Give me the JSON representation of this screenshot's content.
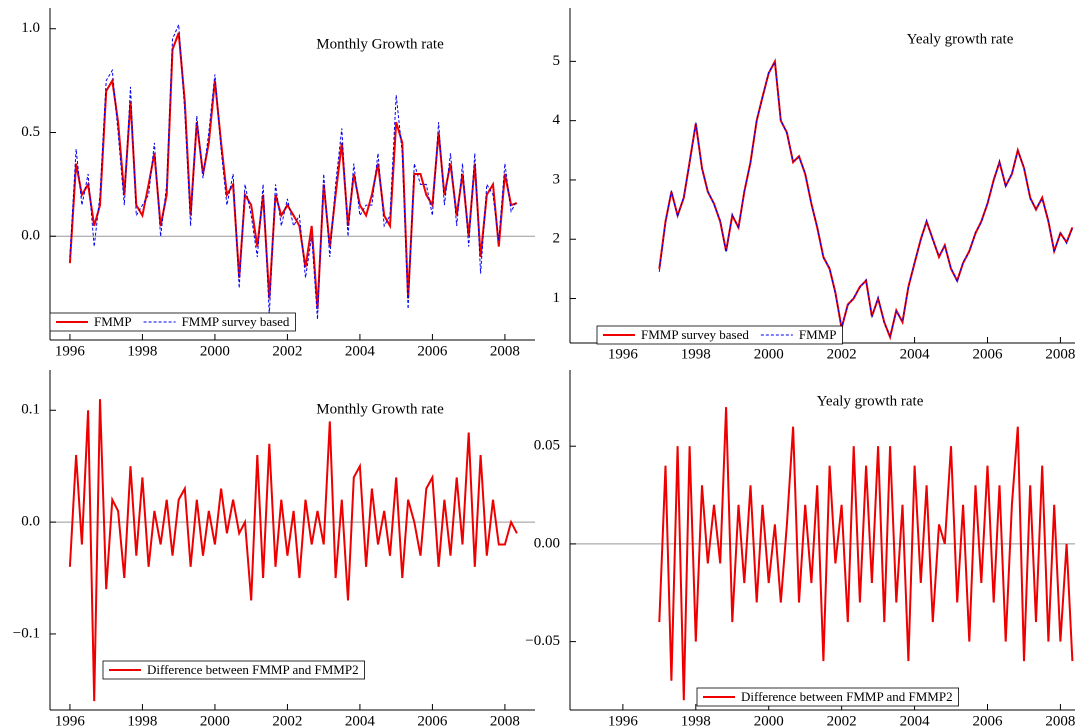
{
  "chart_data": [
    {
      "type": "line",
      "title": "Monthly Growth rate",
      "legend": "lower left",
      "xlim": [
        1995.45,
        2008.83
      ],
      "ylim": [
        -0.5,
        1.1
      ],
      "xticks": [
        1996,
        1998,
        2000,
        2002,
        2004,
        2006,
        2008
      ],
      "yticks": [
        {
          "value": 0,
          "label": "0.0"
        },
        0.5,
        {
          "value": 1,
          "label": "1.0"
        }
      ],
      "x": [
        1996,
        1996.17,
        1996.33,
        1996.5,
        1996.67,
        1996.83,
        1997,
        1997.17,
        1997.33,
        1997.5,
        1997.67,
        1997.83,
        1998,
        1998.17,
        1998.33,
        1998.5,
        1998.67,
        1998.83,
        1999,
        1999.17,
        1999.33,
        1999.5,
        1999.67,
        1999.83,
        2000,
        2000.17,
        2000.33,
        2000.5,
        2000.67,
        2000.83,
        2001,
        2001.17,
        2001.33,
        2001.5,
        2001.67,
        2001.83,
        2002,
        2002.17,
        2002.33,
        2002.5,
        2002.67,
        2002.83,
        2003,
        2003.17,
        2003.33,
        2003.5,
        2003.67,
        2003.83,
        2004,
        2004.17,
        2004.33,
        2004.5,
        2004.67,
        2004.83,
        2005,
        2005.17,
        2005.33,
        2005.5,
        2005.67,
        2005.83,
        2006,
        2006.17,
        2006.33,
        2006.5,
        2006.67,
        2006.83,
        2007,
        2007.17,
        2007.33,
        2007.5,
        2007.67,
        2007.83,
        2008,
        2008.17,
        2008.33
      ],
      "series": [
        {
          "name": "FMMP",
          "color": "#ee0000",
          "linestyle": "solid",
          "values": [
            -0.13,
            0.35,
            0.2,
            0.25,
            0.05,
            0.15,
            0.7,
            0.75,
            0.55,
            0.2,
            0.65,
            0.15,
            0.1,
            0.25,
            0.4,
            0.05,
            0.2,
            0.9,
            0.98,
            0.65,
            0.1,
            0.55,
            0.3,
            0.45,
            0.75,
            0.45,
            0.2,
            0.25,
            -0.2,
            0.2,
            0.15,
            -0.05,
            0.2,
            -0.3,
            0.2,
            0.1,
            0.15,
            0.1,
            0.05,
            -0.15,
            0.05,
            -0.35,
            0.25,
            -0.05,
            0.2,
            0.45,
            0.05,
            0.3,
            0.15,
            0.1,
            0.2,
            0.35,
            0.1,
            0.05,
            0.55,
            0.45,
            -0.3,
            0.3,
            0.3,
            0.2,
            0.15,
            0.5,
            0.2,
            0.35,
            0.1,
            0.3,
            0.0,
            0.35,
            -0.1,
            0.2,
            0.25,
            -0.05,
            0.3,
            0.15,
            0.16
          ]
        },
        {
          "name": "FMMP survey based",
          "color": "#0000ee",
          "linestyle": "dashed",
          "values": [
            -0.1,
            0.42,
            0.15,
            0.3,
            -0.05,
            0.2,
            0.75,
            0.8,
            0.5,
            0.15,
            0.72,
            0.1,
            0.15,
            0.2,
            0.45,
            0.0,
            0.25,
            0.95,
            1.02,
            0.6,
            0.05,
            0.58,
            0.28,
            0.5,
            0.78,
            0.42,
            0.15,
            0.3,
            -0.25,
            0.25,
            0.1,
            -0.1,
            0.25,
            -0.38,
            0.25,
            0.05,
            0.18,
            0.05,
            0.1,
            -0.2,
            0.0,
            -0.4,
            0.3,
            -0.1,
            0.25,
            0.52,
            0.0,
            0.35,
            0.1,
            0.15,
            0.15,
            0.4,
            0.05,
            0.1,
            0.68,
            0.4,
            -0.35,
            0.35,
            0.25,
            0.25,
            0.1,
            0.55,
            0.15,
            0.4,
            0.05,
            0.35,
            -0.05,
            0.4,
            -0.18,
            0.25,
            0.2,
            -0.02,
            0.35,
            0.12,
            0.17
          ]
        }
      ]
    },
    {
      "type": "line",
      "title": "Yealy growth rate",
      "legend": "lower left",
      "xlim": [
        1994.55,
        2008.4
      ],
      "ylim": [
        0.25,
        5.9
      ],
      "xticks": [
        1996,
        1998,
        2000,
        2002,
        2004,
        2006,
        2008
      ],
      "yticks": [
        1,
        2,
        3,
        4,
        5
      ],
      "x": [
        1997,
        1997.17,
        1997.33,
        1997.5,
        1997.67,
        1997.83,
        1998,
        1998.17,
        1998.33,
        1998.5,
        1998.67,
        1998.83,
        1999,
        1999.17,
        1999.33,
        1999.5,
        1999.67,
        1999.83,
        2000,
        2000.17,
        2000.33,
        2000.5,
        2000.67,
        2000.83,
        2001,
        2001.17,
        2001.33,
        2001.5,
        2001.67,
        2001.83,
        2002,
        2002.17,
        2002.33,
        2002.5,
        2002.67,
        2002.83,
        2003,
        2003.17,
        2003.33,
        2003.5,
        2003.67,
        2003.83,
        2004,
        2004.17,
        2004.33,
        2004.5,
        2004.67,
        2004.83,
        2005,
        2005.17,
        2005.33,
        2005.5,
        2005.67,
        2005.83,
        2006,
        2006.17,
        2006.33,
        2006.5,
        2006.67,
        2006.83,
        2007,
        2007.17,
        2007.33,
        2007.5,
        2007.67,
        2007.83,
        2008,
        2008.17,
        2008.33
      ],
      "series": [
        {
          "name": "FMMP survey based",
          "color": "#ee0000",
          "linestyle": "solid",
          "values": [
            1.5,
            2.3,
            2.8,
            2.4,
            2.7,
            3.3,
            3.95,
            3.2,
            2.8,
            2.6,
            2.3,
            1.8,
            2.4,
            2.2,
            2.8,
            3.3,
            4.0,
            4.4,
            4.8,
            5.0,
            4.0,
            3.8,
            3.3,
            3.4,
            3.1,
            2.6,
            2.2,
            1.7,
            1.5,
            1.1,
            0.5,
            0.9,
            1.0,
            1.2,
            1.3,
            0.7,
            1.0,
            0.6,
            0.35,
            0.8,
            0.6,
            1.2,
            1.6,
            2.0,
            2.3,
            2.0,
            1.7,
            1.9,
            1.5,
            1.3,
            1.6,
            1.8,
            2.1,
            2.3,
            2.6,
            3.0,
            3.3,
            2.9,
            3.1,
            3.5,
            3.2,
            2.7,
            2.5,
            2.7,
            2.3,
            1.8,
            2.1,
            1.95,
            2.2
          ]
        },
        {
          "name": "FMMP",
          "color": "#0000ee",
          "linestyle": "dashed",
          "values": [
            1.45,
            2.28,
            2.82,
            2.38,
            2.72,
            3.28,
            3.97,
            3.18,
            2.82,
            2.58,
            2.32,
            1.78,
            2.42,
            2.18,
            2.82,
            3.28,
            4.02,
            4.38,
            4.82,
            4.98,
            4.02,
            3.78,
            3.32,
            3.38,
            3.12,
            2.58,
            2.22,
            1.68,
            1.52,
            1.08,
            0.52,
            0.88,
            1.02,
            1.18,
            1.32,
            0.68,
            1.02,
            0.58,
            0.37,
            0.78,
            0.62,
            1.18,
            1.62,
            1.98,
            2.32,
            1.98,
            1.72,
            1.88,
            1.52,
            1.28,
            1.62,
            1.78,
            2.12,
            2.28,
            2.62,
            2.98,
            3.32,
            2.88,
            3.12,
            3.48,
            3.22,
            2.68,
            2.52,
            2.68,
            2.32,
            1.78,
            2.12,
            1.93,
            2.18
          ]
        }
      ]
    },
    {
      "type": "line",
      "title": "Monthly Growth rate",
      "legend": "lower left",
      "xlim": [
        1995.45,
        2008.83
      ],
      "ylim": [
        -0.168,
        0.136
      ],
      "xticks": [
        1996,
        1998,
        2000,
        2002,
        2004,
        2006,
        2008
      ],
      "yticks": [
        {
          "value": -0.1,
          "label": "−0.1"
        },
        {
          "value": 0,
          "label": "0.0"
        },
        0.1
      ],
      "x": [
        1996,
        1996.17,
        1996.33,
        1996.5,
        1996.67,
        1996.83,
        1997,
        1997.17,
        1997.33,
        1997.5,
        1997.67,
        1997.83,
        1998,
        1998.17,
        1998.33,
        1998.5,
        1998.67,
        1998.83,
        1999,
        1999.17,
        1999.33,
        1999.5,
        1999.67,
        1999.83,
        2000,
        2000.17,
        2000.33,
        2000.5,
        2000.67,
        2000.83,
        2001,
        2001.17,
        2001.33,
        2001.5,
        2001.67,
        2001.83,
        2002,
        2002.17,
        2002.33,
        2002.5,
        2002.67,
        2002.83,
        2003,
        2003.17,
        2003.33,
        2003.5,
        2003.67,
        2003.83,
        2004,
        2004.17,
        2004.33,
        2004.5,
        2004.67,
        2004.83,
        2005,
        2005.17,
        2005.33,
        2005.5,
        2005.67,
        2005.83,
        2006,
        2006.17,
        2006.33,
        2006.5,
        2006.67,
        2006.83,
        2007,
        2007.17,
        2007.33,
        2007.5,
        2007.67,
        2007.83,
        2008,
        2008.17,
        2008.33
      ],
      "series": [
        {
          "name": "Difference between FMMP and FMMP2",
          "color": "#ee0000",
          "linestyle": "solid",
          "values": [
            -0.04,
            0.06,
            -0.02,
            0.1,
            -0.16,
            0.11,
            -0.06,
            0.02,
            0.01,
            -0.05,
            0.05,
            -0.03,
            0.04,
            -0.04,
            0.01,
            -0.02,
            0.02,
            -0.03,
            0.02,
            0.03,
            -0.04,
            0.02,
            -0.03,
            0.01,
            -0.02,
            0.03,
            -0.01,
            0.02,
            -0.01,
            0.0,
            -0.07,
            0.06,
            -0.05,
            0.07,
            -0.04,
            0.02,
            -0.03,
            0.01,
            -0.05,
            0.02,
            -0.02,
            0.01,
            -0.02,
            0.09,
            -0.05,
            0.02,
            -0.07,
            0.04,
            0.05,
            -0.04,
            0.03,
            -0.02,
            0.01,
            -0.03,
            0.04,
            -0.05,
            0.02,
            0.0,
            -0.03,
            0.03,
            0.04,
            -0.04,
            0.02,
            -0.03,
            0.04,
            -0.02,
            0.08,
            -0.04,
            0.06,
            -0.03,
            0.02,
            -0.02,
            -0.02,
            0.0,
            -0.01
          ]
        }
      ]
    },
    {
      "type": "line",
      "title": "Yealy growth rate",
      "legend": "lower left",
      "xlim": [
        1994.55,
        2008.4
      ],
      "ylim": [
        -0.085,
        0.089
      ],
      "xticks": [
        1996,
        1998,
        2000,
        2002,
        2004,
        2006,
        2008
      ],
      "yticks": [
        {
          "value": -0.05,
          "label": "−0.05"
        },
        {
          "value": 0,
          "label": "0.00"
        },
        0.05
      ],
      "x": [
        1997,
        1997.17,
        1997.33,
        1997.5,
        1997.67,
        1997.83,
        1998,
        1998.17,
        1998.33,
        1998.5,
        1998.67,
        1998.83,
        1999,
        1999.17,
        1999.33,
        1999.5,
        1999.67,
        1999.83,
        2000,
        2000.17,
        2000.33,
        2000.5,
        2000.67,
        2000.83,
        2001,
        2001.17,
        2001.33,
        2001.5,
        2001.67,
        2001.83,
        2002,
        2002.17,
        2002.33,
        2002.5,
        2002.67,
        2002.83,
        2003,
        2003.17,
        2003.33,
        2003.5,
        2003.67,
        2003.83,
        2004,
        2004.17,
        2004.33,
        2004.5,
        2004.67,
        2004.83,
        2005,
        2005.17,
        2005.33,
        2005.5,
        2005.67,
        2005.83,
        2006,
        2006.17,
        2006.33,
        2006.5,
        2006.67,
        2006.83,
        2007,
        2007.17,
        2007.33,
        2007.5,
        2007.67,
        2007.83,
        2008,
        2008.17,
        2008.33
      ],
      "series": [
        {
          "name": "Difference between FMMP and FMMP2",
          "color": "#ee0000",
          "linestyle": "solid",
          "values": [
            -0.04,
            0.04,
            -0.07,
            0.05,
            -0.08,
            0.05,
            -0.05,
            0.03,
            -0.01,
            0.02,
            -0.01,
            0.07,
            -0.04,
            0.02,
            -0.02,
            0.03,
            -0.03,
            0.02,
            -0.02,
            0.01,
            -0.03,
            0.01,
            0.06,
            -0.03,
            0.02,
            -0.02,
            0.03,
            -0.06,
            0.04,
            -0.01,
            0.02,
            -0.04,
            0.05,
            -0.03,
            0.04,
            -0.02,
            0.05,
            -0.04,
            0.05,
            -0.03,
            0.02,
            -0.06,
            0.04,
            -0.02,
            0.03,
            -0.04,
            0.01,
            0.0,
            0.05,
            -0.03,
            0.02,
            -0.05,
            0.03,
            -0.02,
            0.04,
            -0.03,
            0.03,
            -0.05,
            0.02,
            0.06,
            -0.06,
            0.03,
            -0.04,
            0.04,
            -0.05,
            0.02,
            -0.05,
            0.0,
            -0.06
          ]
        }
      ]
    }
  ]
}
